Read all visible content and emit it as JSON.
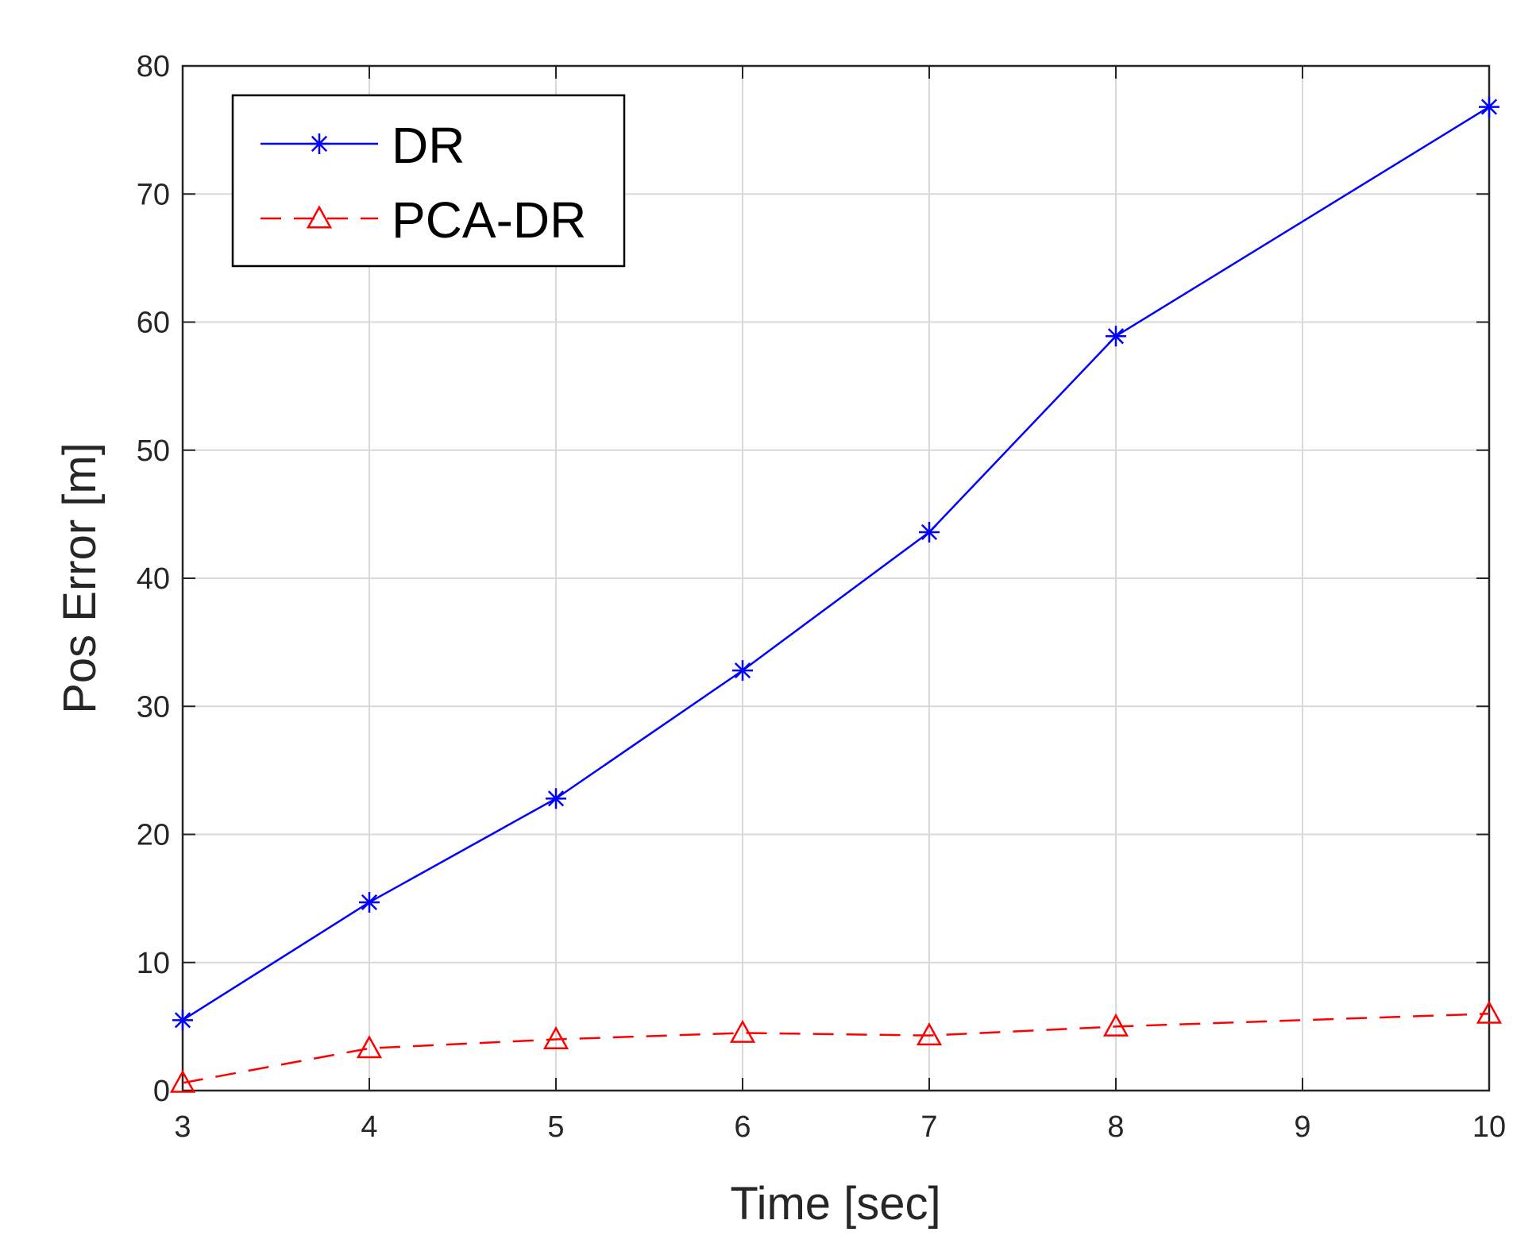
{
  "chart_data": {
    "type": "line",
    "title": "",
    "xlabel": "Time [sec]",
    "ylabel": "Pos Error [m]",
    "xlim": [
      3,
      10
    ],
    "ylim": [
      0,
      80
    ],
    "xticks": [
      "3",
      "4",
      "5",
      "6",
      "7",
      "8",
      "9",
      "10"
    ],
    "yticks": [
      "0",
      "10",
      "20",
      "30",
      "40",
      "50",
      "60",
      "70",
      "80"
    ],
    "grid": true,
    "legend_position": "top-left",
    "series": [
      {
        "name": "DR",
        "x": [
          3,
          4,
          5,
          6,
          7,
          8,
          10
        ],
        "values": [
          5.5,
          14.7,
          22.8,
          32.8,
          43.6,
          58.9,
          76.8
        ],
        "color": "#0000ff",
        "line_style": "solid",
        "marker": "asterisk"
      },
      {
        "name": "PCA-DR",
        "x": [
          3,
          4,
          5,
          6,
          7,
          8,
          10
        ],
        "values": [
          0.6,
          3.3,
          4.0,
          4.5,
          4.3,
          5.0,
          6.0
        ],
        "color": "#ff0000",
        "line_style": "dashed",
        "marker": "triangle"
      }
    ]
  }
}
